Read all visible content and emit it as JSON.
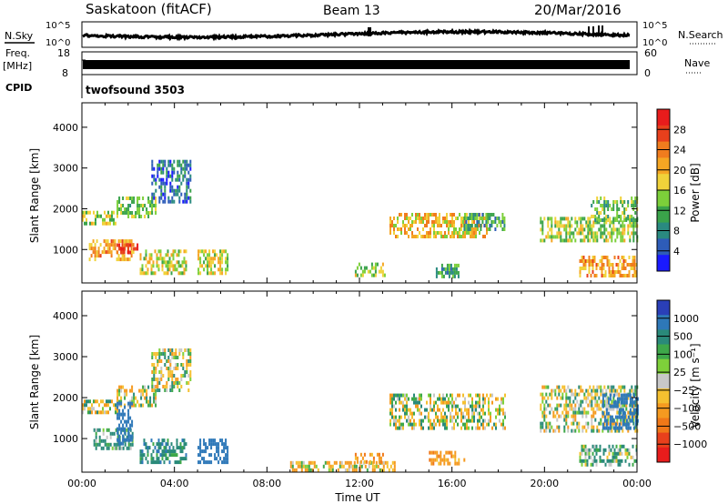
{
  "header": {
    "station": "Saskatoon (fitACF)",
    "beam": "Beam 13",
    "date": "20/Mar/2016"
  },
  "status_panel": {
    "nsky_label": "N.Sky",
    "nsky_ticks": [
      "10^5",
      "10^0"
    ],
    "nsearch_label": "N.Search",
    "freq_label_line1": "Freq.",
    "freq_label_line2": "[MHz]",
    "freq_ticks": [
      "18",
      "8"
    ],
    "nave_label": "Nave",
    "nave_ticks": [
      "60",
      "0"
    ],
    "cpid_label": "CPID",
    "cpid_value": "twofsound 3503"
  },
  "axes": {
    "x_label": "Time UT",
    "x_ticks": [
      "00:00",
      "04:00",
      "08:00",
      "12:00",
      "16:00",
      "20:00",
      "00:00"
    ],
    "y_label": "Slant Range [km]",
    "y_ticks": [
      "1000",
      "2000",
      "3000",
      "4000"
    ]
  },
  "colorbars": {
    "power": {
      "label": "Power [dB]",
      "ticks": [
        "4",
        "8",
        "12",
        "16",
        "20",
        "24",
        "28"
      ],
      "colors": [
        "#1a1aff",
        "#2e5cb8",
        "#2a8a80",
        "#3aa34a",
        "#7ccf3a",
        "#f0d23a",
        "#f5a623",
        "#f07c1e",
        "#e8401c",
        "#e81c1c"
      ]
    },
    "velocity": {
      "label": "Velocity [m s⁻¹]",
      "ticks": [
        "1000",
        "500",
        "100",
        "25",
        "−25",
        "−100",
        "−500",
        "−1000"
      ],
      "colors": [
        "#2a3fb8",
        "#2e78b8",
        "#2a8a7a",
        "#3ea84a",
        "#7ed03a",
        "#c8c8c8",
        "#f5c030",
        "#f59a20",
        "#f07818",
        "#e8401c",
        "#e81c1c"
      ]
    }
  },
  "chart_data": [
    {
      "type": "heatmap",
      "title": "Power",
      "xlabel": "Time UT",
      "ylabel": "Slant Range [km]",
      "xlim": [
        0,
        24
      ],
      "ylim": [
        180,
        4600
      ],
      "clim": [
        0,
        30
      ],
      "colorbar_label": "Power [dB]",
      "regions": [
        {
          "t": [
            0.0,
            1.5
          ],
          "r": [
            1650,
            1950
          ],
          "v": 14
        },
        {
          "t": [
            1.5,
            3.2
          ],
          "r": [
            1850,
            2300
          ],
          "v": 12
        },
        {
          "t": [
            3.0,
            4.7
          ],
          "r": [
            2200,
            3200
          ],
          "v": 6
        },
        {
          "t": [
            0.3,
            2.2
          ],
          "r": [
            800,
            1250
          ],
          "v": 20
        },
        {
          "t": [
            1.5,
            2.4
          ],
          "r": [
            900,
            1150
          ],
          "v": 26
        },
        {
          "t": [
            2.5,
            4.5
          ],
          "r": [
            450,
            1000
          ],
          "v": 16
        },
        {
          "t": [
            5.0,
            6.3
          ],
          "r": [
            450,
            1000
          ],
          "v": 16
        },
        {
          "t": [
            11.8,
            13.1
          ],
          "r": [
            400,
            680
          ],
          "v": 14
        },
        {
          "t": [
            13.3,
            17.5
          ],
          "r": [
            1300,
            1900
          ],
          "v": 18
        },
        {
          "t": [
            16.5,
            18.3
          ],
          "r": [
            1500,
            1900
          ],
          "v": 10
        },
        {
          "t": [
            15.3,
            16.3
          ],
          "r": [
            350,
            650
          ],
          "v": 10
        },
        {
          "t": [
            19.8,
            24.0
          ],
          "r": [
            1250,
            1800
          ],
          "v": 14
        },
        {
          "t": [
            22.0,
            24.0
          ],
          "r": [
            1700,
            2300
          ],
          "v": 12
        },
        {
          "t": [
            21.5,
            24.0
          ],
          "r": [
            400,
            850
          ],
          "v": 20
        }
      ]
    },
    {
      "type": "heatmap",
      "title": "Velocity",
      "xlabel": "Time UT",
      "ylabel": "Slant Range [km]",
      "xlim": [
        0,
        24
      ],
      "ylim": [
        180,
        4600
      ],
      "clim": [
        -1000,
        1000
      ],
      "colorbar_label": "Velocity [m s⁻¹]",
      "regions": [
        {
          "t": [
            0.0,
            1.5
          ],
          "r": [
            1650,
            1950
          ],
          "v": 0
        },
        {
          "t": [
            1.5,
            3.2
          ],
          "r": [
            1850,
            2300
          ],
          "v": 0
        },
        {
          "t": [
            3.0,
            4.7
          ],
          "r": [
            2200,
            3200
          ],
          "v": 0
        },
        {
          "t": [
            0.5,
            2.2
          ],
          "r": [
            800,
            1250
          ],
          "v": 150
        },
        {
          "t": [
            1.5,
            2.2
          ],
          "r": [
            900,
            1900
          ],
          "v": 500
        },
        {
          "t": [
            2.5,
            4.5
          ],
          "r": [
            450,
            1000
          ],
          "v": 200
        },
        {
          "t": [
            5.0,
            6.3
          ],
          "r": [
            450,
            1000
          ],
          "v": 500
        },
        {
          "t": [
            9.0,
            13.5
          ],
          "r": [
            200,
            450
          ],
          "v": -60
        },
        {
          "t": [
            11.8,
            13.0
          ],
          "r": [
            400,
            650
          ],
          "v": -200
        },
        {
          "t": [
            15.0,
            16.5
          ],
          "r": [
            350,
            700
          ],
          "v": -200
        },
        {
          "t": [
            13.3,
            18.3
          ],
          "r": [
            1300,
            2100
          ],
          "v": 0
        },
        {
          "t": [
            19.8,
            24.0
          ],
          "r": [
            1200,
            2300
          ],
          "v": 0
        },
        {
          "t": [
            22.5,
            24.0
          ],
          "r": [
            1300,
            2100
          ],
          "v": 500
        },
        {
          "t": [
            21.5,
            24.0
          ],
          "r": [
            400,
            850
          ],
          "v": 100
        }
      ]
    }
  ]
}
